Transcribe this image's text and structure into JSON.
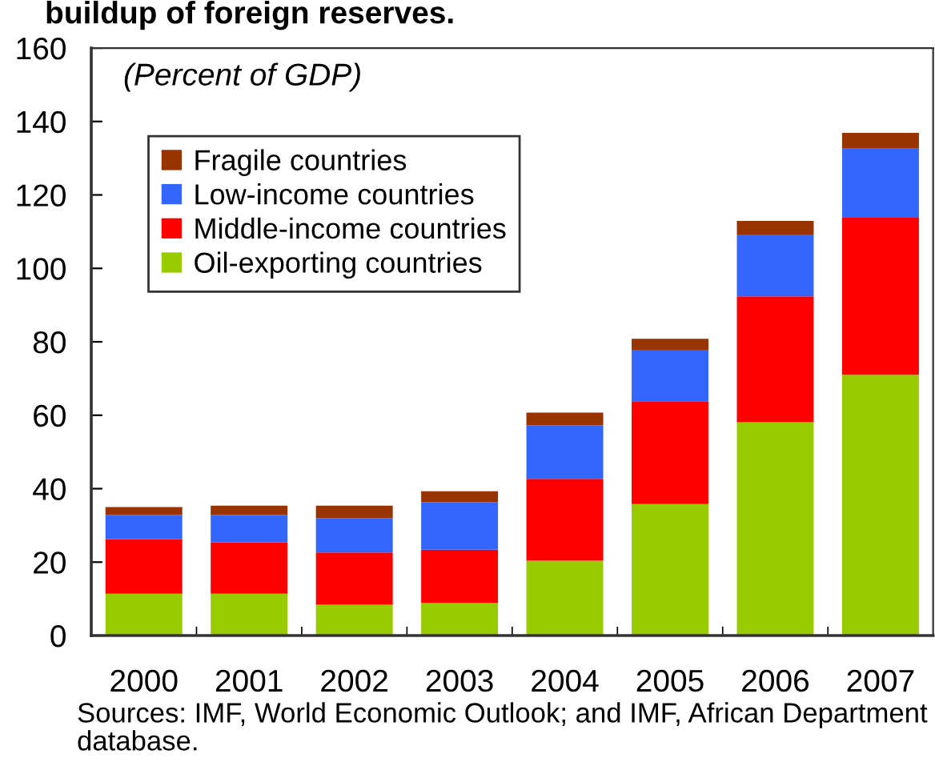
{
  "chart_data": {
    "type": "bar",
    "title": "buildup of foreign reserves.",
    "stacked": true,
    "categories": [
      "2000",
      "2001",
      "2002",
      "2003",
      "2004",
      "2005",
      "2006",
      "2007"
    ],
    "series": [
      {
        "name": "Oil-exporting countries",
        "color": "#99cc00",
        "values": [
          11.4,
          11.4,
          8.4,
          8.9,
          20.4,
          35.8,
          58.1,
          71.0
        ]
      },
      {
        "name": "Middle-income countries",
        "color": "#ff0000",
        "values": [
          14.9,
          14.0,
          14.2,
          14.5,
          22.3,
          28.0,
          34.3,
          42.8
        ]
      },
      {
        "name": "Low-income countries",
        "color": "#3366ff",
        "values": [
          6.5,
          7.4,
          9.4,
          12.9,
          14.6,
          14.0,
          16.8,
          18.8
        ]
      },
      {
        "name": "Fragile countries",
        "color": "#993300",
        "values": [
          2.2,
          2.6,
          3.4,
          3.0,
          3.4,
          3.0,
          3.7,
          4.3
        ]
      }
    ],
    "ylim": [
      0,
      160
    ],
    "yticks": [
      0,
      20,
      40,
      60,
      80,
      100,
      120,
      140,
      160
    ],
    "annotations": [
      "(Percent of GDP)",
      "Sources: IMF, World Economic Outlook; and IMF, African Department database."
    ],
    "legend": "top left",
    "grid": false
  }
}
